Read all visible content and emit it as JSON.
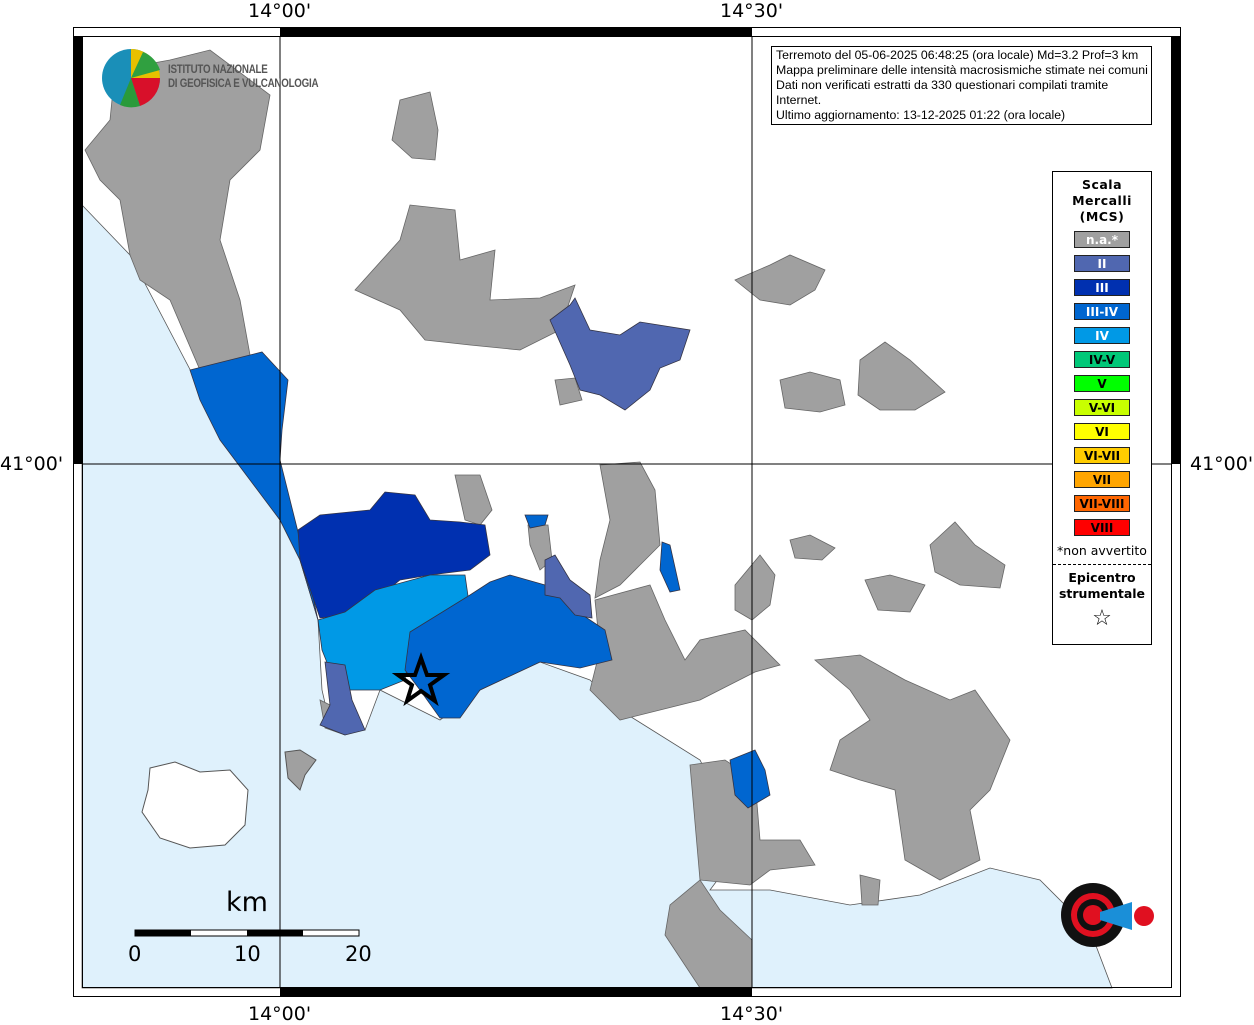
{
  "axes": {
    "lon_top": [
      "14°00'",
      "14°30'"
    ],
    "lon_bottom": [
      "14°00'",
      "14°30'"
    ],
    "lat_left": "41°00'",
    "lat_right": "41°00'"
  },
  "info": {
    "lines": [
      "Terremoto del 05-06-2025 06:48:25 (ora locale) Md=3.2 Prof=3 km",
      "Mappa preliminare delle intensità macrosismiche stimate nei comuni",
      "Dati non verificati estratti da 330 questionari compilati tramite Internet.",
      "Ultimo aggiornamento: 13-12-2025 01:22 (ora locale)"
    ]
  },
  "legend": {
    "title": [
      "Scala",
      "Mercalli",
      "(MCS)"
    ],
    "items": [
      {
        "label": "n.a.*",
        "color": "#a0a0a0",
        "text": "#fff"
      },
      {
        "label": "II",
        "color": "#5067b0",
        "text": "#fff"
      },
      {
        "label": "III",
        "color": "#0030b0",
        "text": "#fff"
      },
      {
        "label": "III-IV",
        "color": "#0066d0",
        "text": "#fff"
      },
      {
        "label": "IV",
        "color": "#0099e6",
        "text": "#fff"
      },
      {
        "label": "IV-V",
        "color": "#00c878",
        "text": "#000"
      },
      {
        "label": "V",
        "color": "#00ff00",
        "text": "#000"
      },
      {
        "label": "V-VI",
        "color": "#c8ff00",
        "text": "#000"
      },
      {
        "label": "VI",
        "color": "#ffff00",
        "text": "#000"
      },
      {
        "label": "VI-VII",
        "color": "#ffcc00",
        "text": "#000"
      },
      {
        "label": "VII",
        "color": "#ffa500",
        "text": "#000"
      },
      {
        "label": "VII-VIII",
        "color": "#ff6600",
        "text": "#000"
      },
      {
        "label": "VIII",
        "color": "#ff0000",
        "text": "#000"
      }
    ],
    "note": "*non avvertito",
    "epicenter": [
      "Epicentro",
      "strumentale"
    ],
    "epicenter_symbol": "☆"
  },
  "logo": {
    "ingv": [
      "ISTITUTO NAZIONALE",
      "DI GEOFISICA E VULCANOLOGIA"
    ],
    "hst": "www.haisentitoilterremoto.it"
  },
  "scale": {
    "unit": "km",
    "labels": [
      "0",
      "10",
      "20"
    ]
  },
  "colors": {
    "sea": "#dff1fc",
    "land": "#ffffff",
    "na": "#a0a0a0"
  }
}
